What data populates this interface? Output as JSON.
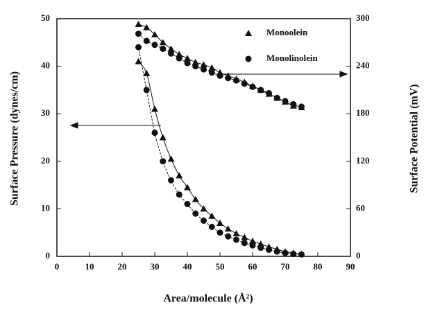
{
  "chart_data": {
    "type": "line",
    "x_label": "Area/molecule (Å²)",
    "y_label": "Surface Pressure (dynes/cm)",
    "y2_label": "Surface Potential (mV)",
    "x": [
      25,
      27.5,
      30,
      32.5,
      35,
      37.5,
      40,
      42.5,
      45,
      47.5,
      50,
      52.5,
      55,
      57.5,
      60,
      62.5,
      65,
      67.5,
      70,
      72.5,
      75
    ],
    "xlim": [
      0,
      90
    ],
    "xticks": [
      0,
      10,
      20,
      30,
      40,
      50,
      60,
      70,
      80,
      90
    ],
    "ylim": [
      0,
      50
    ],
    "yticks": [
      0,
      10,
      20,
      30,
      40,
      50
    ],
    "y2lim": [
      0,
      300
    ],
    "y2ticks": [
      0,
      60,
      120,
      180,
      240,
      300
    ],
    "legend": "upper right",
    "series": [
      {
        "name": "Monoolein",
        "marker": "triangle",
        "color": "#111",
        "axis": "y",
        "values": [
          41,
          38.5,
          31,
          25,
          20.5,
          17,
          14.5,
          12,
          10,
          8.5,
          7,
          5.8,
          4.8,
          4,
          3.2,
          2.6,
          2,
          1.5,
          1,
          0.7,
          0.5
        ]
      },
      {
        "name": "Monolinolein",
        "marker": "circle",
        "color": "#111",
        "axis": "y",
        "values": [
          44,
          35,
          26,
          20,
          16,
          13,
          11,
          9,
          7.5,
          6.2,
          5,
          4.2,
          3.5,
          2.8,
          2.3,
          1.8,
          1.4,
          1,
          0.7,
          0.5,
          0.4
        ]
      },
      {
        "marker": "triangle",
        "color": "#111",
        "axis": "y2",
        "values": [
          293,
          289,
          280,
          270,
          262,
          255,
          250,
          245,
          242,
          238,
          232,
          228,
          224,
          220,
          215,
          210,
          205,
          200,
          195,
          190,
          188
        ]
      },
      {
        "marker": "circle",
        "color": "#111",
        "axis": "y2",
        "values": [
          281,
          272,
          267,
          262,
          256,
          250,
          244,
          240,
          236,
          232,
          228,
          225,
          222,
          218,
          214,
          210,
          206,
          200,
          196,
          192,
          189
        ]
      }
    ]
  }
}
